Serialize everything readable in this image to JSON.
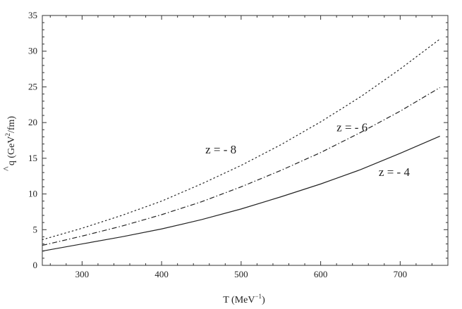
{
  "chart_data": {
    "type": "line",
    "title": "",
    "xlabel": "T (MeV",
    "xlabel_sup": "−1",
    "xlabel_close": ")",
    "ylabel": "q (GeV",
    "ylabel_hat": "^",
    "ylabel_sup": "2",
    "ylabel_close": "/fm)",
    "xlim": [
      250,
      760
    ],
    "ylim": [
      0,
      35
    ],
    "xticks": [
      300,
      400,
      500,
      600,
      700
    ],
    "yticks": [
      0,
      5,
      10,
      15,
      20,
      25,
      30,
      35
    ],
    "grid": false,
    "legend": "none",
    "series": [
      {
        "name": "z = - 8",
        "style": "dotted",
        "x": [
          250,
          300,
          350,
          400,
          450,
          500,
          550,
          600,
          650,
          700,
          750
        ],
        "y": [
          3.6,
          5.2,
          7.0,
          9.0,
          11.4,
          14.0,
          16.9,
          20.1,
          23.6,
          27.5,
          31.7
        ]
      },
      {
        "name": "z = - 6",
        "style": "dashdot",
        "x": [
          250,
          300,
          350,
          400,
          450,
          500,
          550,
          600,
          650,
          700,
          750
        ],
        "y": [
          2.8,
          4.1,
          5.5,
          7.1,
          8.9,
          11.0,
          13.3,
          15.8,
          18.6,
          21.6,
          24.9
        ]
      },
      {
        "name": "z = - 4",
        "style": "solid",
        "x": [
          250,
          300,
          350,
          400,
          450,
          500,
          550,
          600,
          650,
          700,
          750
        ],
        "y": [
          2.0,
          3.0,
          4.0,
          5.1,
          6.4,
          7.9,
          9.6,
          11.4,
          13.4,
          15.7,
          18.1
        ]
      }
    ],
    "annotations": [
      {
        "text": "z = - 8",
        "x": 455,
        "y": 15.7
      },
      {
        "text": "z = - 6",
        "x": 620,
        "y": 18.8
      },
      {
        "text": "z = - 4",
        "x": 673,
        "y": 12.5
      }
    ]
  }
}
